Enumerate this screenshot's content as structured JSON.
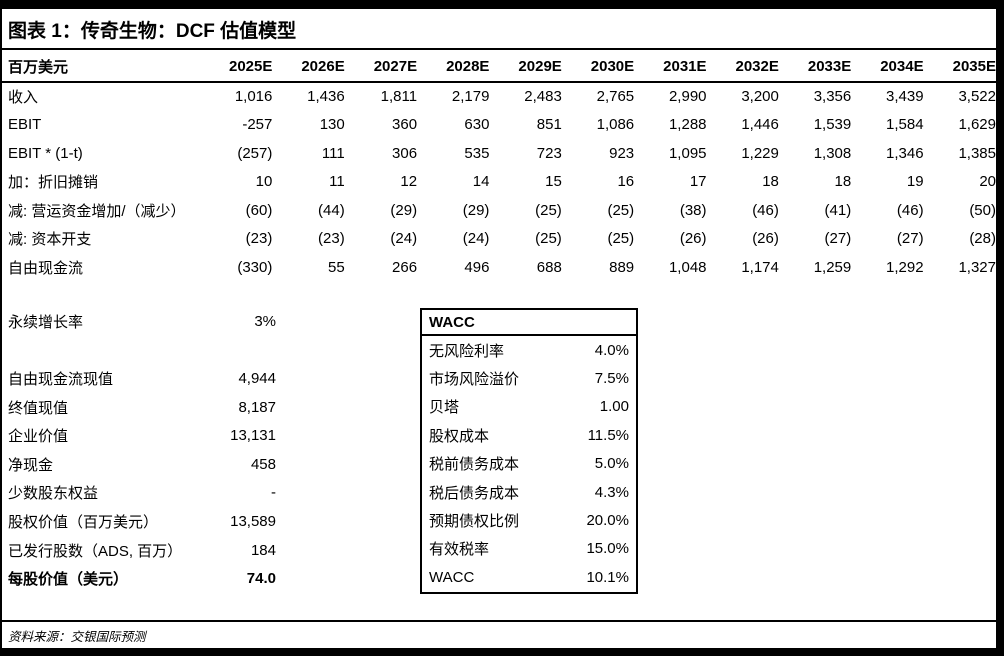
{
  "figure": {
    "title": "图表 1：传奇生物：DCF 估值模型",
    "source": "资料来源：交银国际预测",
    "frame_color": "#000000",
    "background_color": "#ffffff"
  },
  "table": {
    "unit_label": "百万美元",
    "years": [
      "2025E",
      "2026E",
      "2027E",
      "2028E",
      "2029E",
      "2030E",
      "2031E",
      "2032E",
      "2033E",
      "2034E",
      "2035E"
    ],
    "rows": [
      {
        "label": "收入",
        "values": [
          "1,016",
          "1,436",
          "1,811",
          "2,179",
          "2,483",
          "2,765",
          "2,990",
          "3,200",
          "3,356",
          "3,439",
          "3,522"
        ]
      },
      {
        "label": "EBIT",
        "values": [
          "-257",
          "130",
          "360",
          "630",
          "851",
          "1,086",
          "1,288",
          "1,446",
          "1,539",
          "1,584",
          "1,629"
        ]
      },
      {
        "label": "EBIT * (1-t)",
        "values": [
          "(257)",
          "111",
          "306",
          "535",
          "723",
          "923",
          "1,095",
          "1,229",
          "1,308",
          "1,346",
          "1,385"
        ]
      },
      {
        "label": "加：折旧摊销",
        "values": [
          "10",
          "11",
          "12",
          "14",
          "15",
          "16",
          "17",
          "18",
          "18",
          "19",
          "20"
        ]
      },
      {
        "label": "减: 营运资金增加/（减少）",
        "values": [
          "(60)",
          "(44)",
          "(29)",
          "(29)",
          "(25)",
          "(25)",
          "(38)",
          "(46)",
          "(41)",
          "(46)",
          "(50)"
        ]
      },
      {
        "label": "减: 资本开支",
        "values": [
          "(23)",
          "(23)",
          "(24)",
          "(24)",
          "(25)",
          "(25)",
          "(26)",
          "(26)",
          "(27)",
          "(27)",
          "(28)"
        ]
      },
      {
        "label": "自由现金流",
        "values": [
          "(330)",
          "55",
          "266",
          "496",
          "688",
          "889",
          "1,048",
          "1,174",
          "1,259",
          "1,292",
          "1,327"
        ]
      }
    ]
  },
  "valuation": {
    "growth": {
      "label": "永续增长率",
      "value": "3%"
    },
    "rows": [
      {
        "label": "自由现金流现值",
        "value": "4,944"
      },
      {
        "label": "终值现值",
        "value": "8,187"
      },
      {
        "label": "企业价值",
        "value": "13,131"
      },
      {
        "label": "净现金",
        "value": "458"
      },
      {
        "label": "少数股东权益",
        "value": "-"
      },
      {
        "label": "股权价值（百万美元）",
        "value": "13,589"
      },
      {
        "label": "已发行股数（ADS, 百万）",
        "value": "184"
      },
      {
        "label": "每股价值（美元）",
        "value": "74.0"
      }
    ]
  },
  "wacc_box": {
    "title": "WACC",
    "rows": [
      {
        "label": "无风险利率",
        "value": "4.0%"
      },
      {
        "label": "市场风险溢价",
        "value": "7.5%"
      },
      {
        "label": "贝塔",
        "value": "1.00"
      },
      {
        "label": "股权成本",
        "value": "11.5%"
      },
      {
        "label": "税前债务成本",
        "value": "5.0%"
      },
      {
        "label": "税后债务成本",
        "value": "4.3%"
      },
      {
        "label": "预期债权比例",
        "value": "20.0%"
      },
      {
        "label": "有效税率",
        "value": "15.0%"
      },
      {
        "label": "WACC",
        "value": "10.1%"
      }
    ]
  }
}
